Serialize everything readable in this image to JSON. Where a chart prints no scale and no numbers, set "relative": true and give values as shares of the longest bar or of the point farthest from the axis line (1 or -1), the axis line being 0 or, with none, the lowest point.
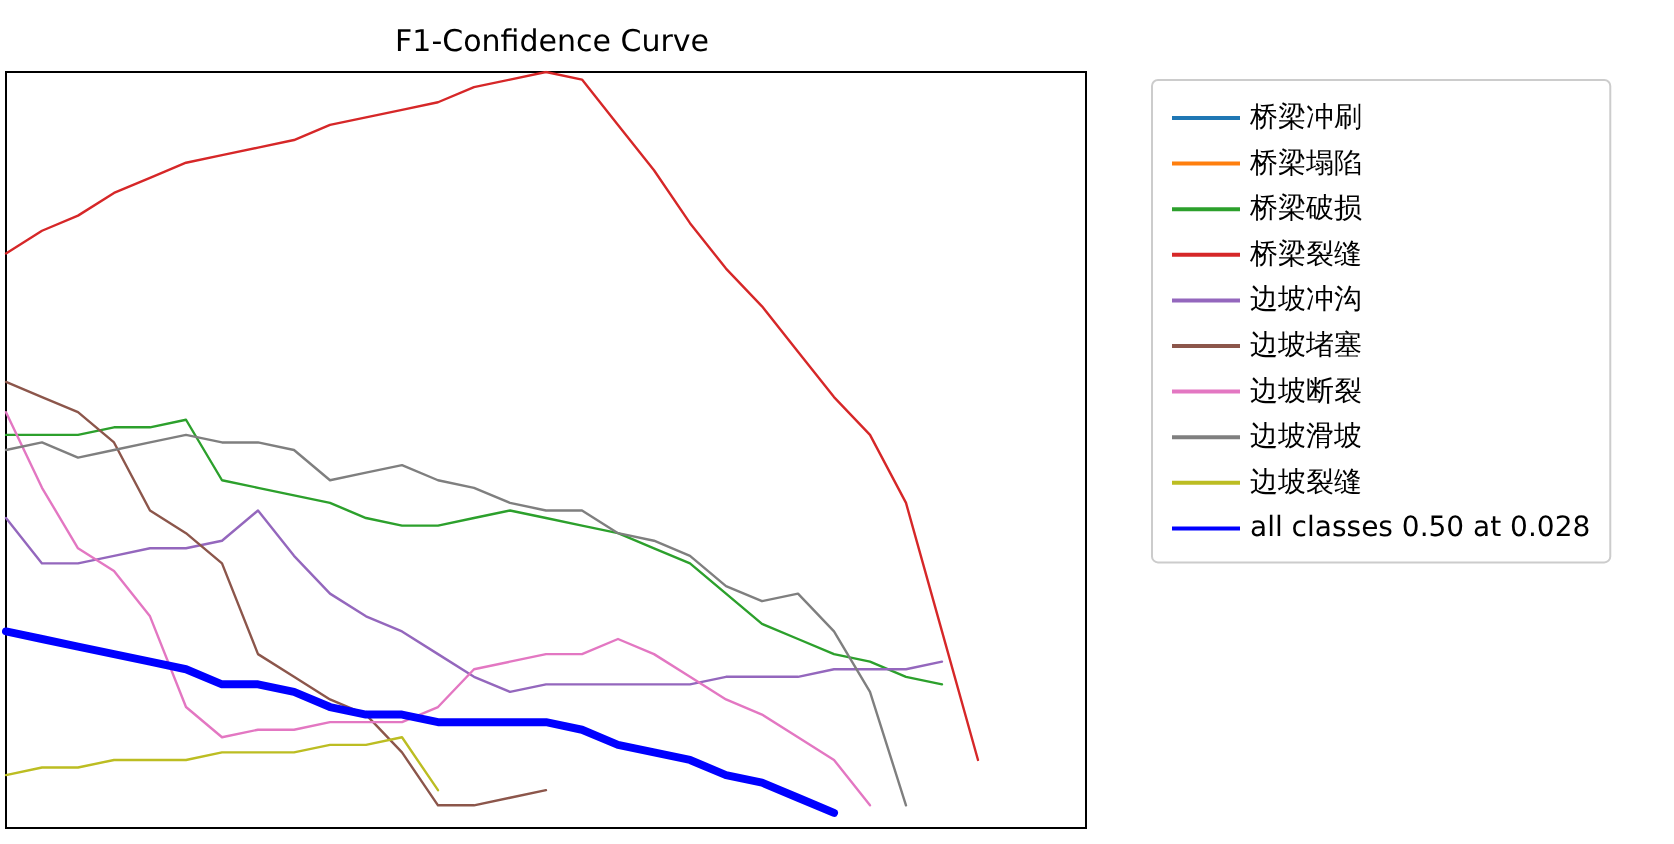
{
  "chart_data": {
    "type": "line",
    "title": "F1-Confidence Curve",
    "relative": true,
    "legend": "right",
    "grid": false,
    "marker": "none",
    "line_style": "solid",
    "categories": [
      null,
      null,
      null,
      null,
      null,
      null,
      null,
      null,
      null,
      null,
      null,
      null,
      null,
      null,
      null,
      null,
      null,
      null,
      null,
      null,
      null,
      null,
      null,
      null,
      null,
      null,
      null,
      null,
      null,
      null,
      null
    ],
    "series": [
      {
        "name": "桥梁冲刷",
        "color": "#1f77b4",
        "values": [
          null,
          null,
          null,
          null,
          null,
          null,
          null,
          null,
          null,
          null,
          null,
          null,
          null,
          null,
          null,
          null,
          null,
          null,
          null,
          null,
          null,
          null,
          null,
          null,
          null,
          null,
          null,
          null,
          null,
          null,
          null
        ]
      },
      {
        "name": "桥梁塌陷",
        "color": "#ff7f0e",
        "values": [
          null,
          null,
          null,
          null,
          null,
          null,
          null,
          null,
          null,
          null,
          null,
          null,
          null,
          null,
          null,
          null,
          null,
          null,
          null,
          null,
          null,
          null,
          null,
          null,
          null,
          null,
          null,
          null,
          null,
          null,
          null
        ]
      },
      {
        "name": "桥梁破损",
        "color": "#2ca02c",
        "values": [
          0.52,
          0.52,
          0.52,
          0.53,
          0.53,
          0.54,
          0.46,
          0.45,
          0.44,
          0.43,
          0.41,
          0.4,
          0.4,
          0.41,
          0.42,
          0.41,
          0.4,
          0.39,
          0.37,
          0.35,
          0.31,
          0.27,
          0.25,
          0.23,
          0.22,
          0.2,
          0.19,
          null,
          null,
          null,
          null
        ]
      },
      {
        "name": "桥梁裂缝",
        "color": "#d62728",
        "values": [
          0.76,
          0.79,
          0.81,
          0.84,
          0.86,
          0.88,
          0.89,
          0.9,
          0.91,
          0.93,
          0.94,
          0.95,
          0.96,
          0.98,
          0.99,
          1,
          0.99,
          0.93,
          0.87,
          0.8,
          0.74,
          0.69,
          0.63,
          0.57,
          0.52,
          0.43,
          0.26,
          0.09,
          null,
          null,
          null
        ]
      },
      {
        "name": "边坡冲沟",
        "color": "#9467bd",
        "values": [
          0.41,
          0.35,
          0.35,
          0.36,
          0.37,
          0.37,
          0.38,
          0.42,
          0.36,
          0.31,
          0.28,
          0.26,
          0.23,
          0.2,
          0.18,
          0.19,
          0.19,
          0.19,
          0.19,
          0.19,
          0.2,
          0.2,
          0.2,
          0.21,
          0.21,
          0.21,
          0.22,
          null,
          null,
          null,
          null
        ]
      },
      {
        "name": "边坡堵塞",
        "color": "#8c564b",
        "values": [
          0.59,
          0.57,
          0.55,
          0.51,
          0.42,
          0.39,
          0.35,
          0.23,
          0.2,
          0.17,
          0.15,
          0.1,
          0.03,
          0.03,
          0.04,
          0.05,
          null,
          null,
          null,
          null,
          null,
          null,
          null,
          null,
          null,
          null,
          null,
          null,
          null,
          null,
          null
        ]
      },
      {
        "name": "边坡断裂",
        "color": "#e377c2",
        "values": [
          0.55,
          0.45,
          0.37,
          0.34,
          0.28,
          0.16,
          0.12,
          0.13,
          0.13,
          0.14,
          0.14,
          0.14,
          0.16,
          0.21,
          0.22,
          0.23,
          0.23,
          0.25,
          0.23,
          0.2,
          0.17,
          0.15,
          0.12,
          0.09,
          0.03,
          null,
          null,
          null,
          null,
          null,
          null
        ]
      },
      {
        "name": "边坡滑坡",
        "color": "#7f7f7f",
        "values": [
          0.5,
          0.51,
          0.49,
          0.5,
          0.51,
          0.52,
          0.51,
          0.51,
          0.5,
          0.46,
          0.47,
          0.48,
          0.46,
          0.45,
          0.43,
          0.42,
          0.42,
          0.39,
          0.38,
          0.36,
          0.32,
          0.3,
          0.31,
          0.26,
          0.18,
          0.03,
          null,
          null,
          null,
          null,
          null
        ]
      },
      {
        "name": "边坡裂缝",
        "color": "#bcbd22",
        "values": [
          0.07,
          0.08,
          0.08,
          0.09,
          0.09,
          0.09,
          0.1,
          0.1,
          0.1,
          0.11,
          0.11,
          0.12,
          0.05,
          null,
          null,
          null,
          null,
          null,
          null,
          null,
          null,
          null,
          null,
          null,
          null,
          null,
          null,
          null,
          null,
          null,
          null
        ]
      },
      {
        "name": "all classes 0.50 at 0.028",
        "color": "#0000ff",
        "values": [
          0.26,
          0.25,
          0.24,
          0.23,
          0.22,
          0.21,
          0.19,
          0.19,
          0.18,
          0.16,
          0.15,
          0.15,
          0.14,
          0.14,
          0.14,
          0.14,
          0.13,
          0.11,
          0.1,
          0.09,
          0.07,
          0.06,
          0.04,
          0.02,
          null,
          null,
          null,
          null,
          null,
          null,
          null
        ]
      }
    ]
  }
}
